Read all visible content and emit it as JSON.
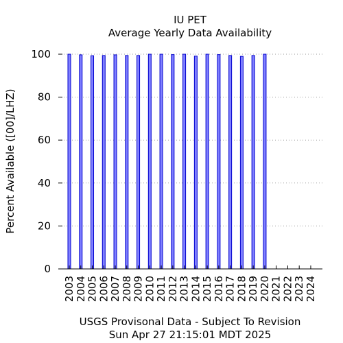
{
  "chart_data": {
    "type": "bar",
    "title": "IU PET",
    "subtitle": "Average Yearly Data Availability",
    "ylabel": "Percent Available ([00]/LHZ)",
    "xlabel": "",
    "footer": [
      "USGS Provisonal Data - Subject To Revision",
      "Sun Apr 27 21:15:01 MDT 2025"
    ],
    "ylim": [
      0,
      100
    ],
    "yticks": [
      "0",
      "20",
      "40",
      "60",
      "80",
      "100"
    ],
    "categories": [
      "2003",
      "2004",
      "2005",
      "2006",
      "2007",
      "2008",
      "2009",
      "2010",
      "2011",
      "2012",
      "2013",
      "2014",
      "2015",
      "2016",
      "2017",
      "2018",
      "2019",
      "2020",
      "2021",
      "2022",
      "2023",
      "2024"
    ],
    "values": [
      100,
      99.7,
      99.3,
      99.4,
      99.7,
      99.4,
      99.4,
      100,
      100,
      99.8,
      100,
      99.1,
      100,
      99.8,
      99.4,
      99.0,
      99.4,
      100,
      null,
      null,
      null,
      null
    ],
    "bar_fill": "#8080ff",
    "bar_stroke": "#0000cc",
    "grid": "horizontal dotted",
    "grid_color": "#999999",
    "legend": "none"
  }
}
